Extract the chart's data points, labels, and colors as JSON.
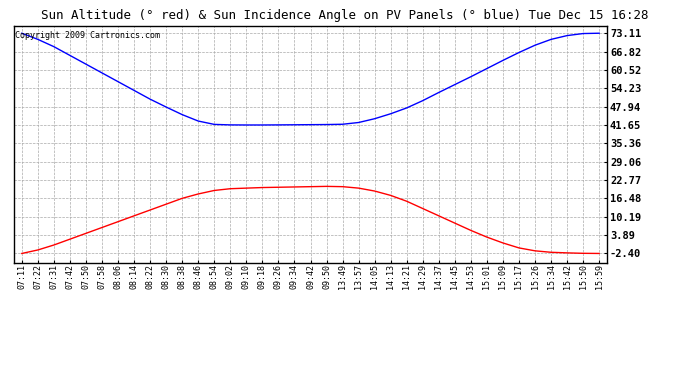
{
  "title": "Sun Altitude (° red) & Sun Incidence Angle on PV Panels (° blue) Tue Dec 15 16:28",
  "copyright": "Copyright 2009 Cartronics.com",
  "yticks": [
    73.11,
    66.82,
    60.52,
    54.23,
    47.94,
    41.65,
    35.36,
    29.06,
    22.77,
    16.48,
    10.19,
    3.89,
    -2.4
  ],
  "xticks": [
    "07:11",
    "07:22",
    "07:31",
    "07:42",
    "07:50",
    "07:58",
    "08:06",
    "08:14",
    "08:22",
    "08:30",
    "08:38",
    "08:46",
    "08:54",
    "09:02",
    "09:10",
    "09:18",
    "09:26",
    "09:34",
    "09:42",
    "09:50",
    "13:49",
    "13:57",
    "14:05",
    "14:13",
    "14:21",
    "14:29",
    "14:37",
    "14:45",
    "14:53",
    "15:01",
    "15:09",
    "15:17",
    "15:26",
    "15:34",
    "15:42",
    "15:50",
    "15:59"
  ],
  "blue_y": [
    73.11,
    71.0,
    68.5,
    65.5,
    62.5,
    59.5,
    56.5,
    53.5,
    50.5,
    47.8,
    45.2,
    43.0,
    41.85,
    41.68,
    41.65,
    41.65,
    41.68,
    41.72,
    41.76,
    41.8,
    41.9,
    42.5,
    43.8,
    45.5,
    47.5,
    50.0,
    52.8,
    55.5,
    58.2,
    61.0,
    63.8,
    66.5,
    69.0,
    71.0,
    72.3,
    73.0,
    73.11
  ],
  "red_y": [
    -2.4,
    -1.2,
    0.5,
    2.5,
    4.5,
    6.5,
    8.5,
    10.5,
    12.5,
    14.5,
    16.5,
    18.0,
    19.2,
    19.8,
    20.0,
    20.2,
    20.3,
    20.4,
    20.5,
    20.6,
    20.5,
    20.0,
    19.0,
    17.5,
    15.5,
    13.0,
    10.5,
    8.0,
    5.5,
    3.2,
    1.2,
    -0.5,
    -1.5,
    -2.0,
    -2.2,
    -2.35,
    -2.4
  ],
  "blue_color": "#0000ff",
  "red_color": "#ff0000",
  "bg_color": "#ffffff",
  "grid_color": "#aaaaaa",
  "title_fontsize": 9,
  "copyright_fontsize": 6,
  "tick_fontsize": 6,
  "ytick_fontsize": 7.5,
  "ymin": -2.4,
  "ymax": 73.11
}
